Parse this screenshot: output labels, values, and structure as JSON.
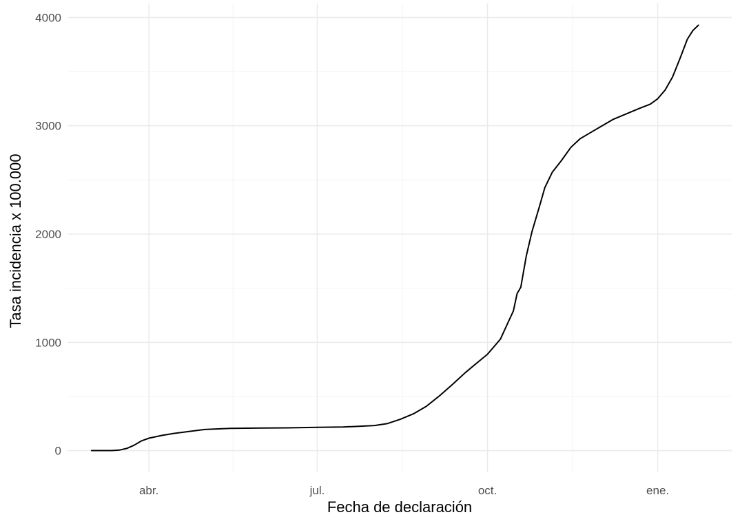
{
  "chart_data": {
    "type": "line",
    "title": "",
    "xlabel": "Fecha de declaración",
    "ylabel": "Tasa incidencia x 100.000",
    "x_tick_labels": [
      "abr.",
      "jul.",
      "oct.",
      "ene."
    ],
    "x_tick_dates": [
      "2020-04-01",
      "2020-07-01",
      "2020-10-01",
      "2021-01-01"
    ],
    "xlim": [
      "2020-02-17",
      "2021-02-10"
    ],
    "y_ticks": [
      0,
      1000,
      2000,
      3000,
      4000
    ],
    "ylim": [
      -200,
      4130
    ],
    "grid": true,
    "legend": "none",
    "line_color": "#000000",
    "series": [
      {
        "x": [
          "2020-03-01",
          "2020-03-08",
          "2020-03-12",
          "2020-03-16",
          "2020-03-20",
          "2020-03-24",
          "2020-03-28",
          "2020-04-01",
          "2020-04-08",
          "2020-04-15",
          "2020-04-22",
          "2020-05-01",
          "2020-05-15",
          "2020-06-01",
          "2020-06-15",
          "2020-07-01",
          "2020-07-15",
          "2020-08-01",
          "2020-08-08",
          "2020-08-15",
          "2020-08-22",
          "2020-08-29",
          "2020-09-05",
          "2020-09-12",
          "2020-09-19",
          "2020-09-26",
          "2020-10-01",
          "2020-10-08",
          "2020-10-12",
          "2020-10-15",
          "2020-10-17",
          "2020-10-19",
          "2020-10-22",
          "2020-10-25",
          "2020-10-29",
          "2020-11-01",
          "2020-11-05",
          "2020-11-10",
          "2020-11-15",
          "2020-11-20",
          "2020-11-25",
          "2020-12-01",
          "2020-12-08",
          "2020-12-15",
          "2020-12-22",
          "2020-12-28",
          "2021-01-01",
          "2021-01-05",
          "2021-01-09",
          "2021-01-13",
          "2021-01-17",
          "2021-01-20",
          "2021-01-23"
        ],
        "y": [
          0,
          0,
          0,
          5,
          20,
          50,
          90,
          115,
          140,
          160,
          175,
          195,
          205,
          208,
          210,
          215,
          218,
          232,
          250,
          290,
          340,
          410,
          505,
          610,
          720,
          820,
          890,
          1030,
          1180,
          1290,
          1450,
          1510,
          1800,
          2020,
          2250,
          2430,
          2570,
          2680,
          2800,
          2880,
          2930,
          2990,
          3060,
          3110,
          3160,
          3200,
          3250,
          3330,
          3450,
          3620,
          3800,
          3880,
          3930
        ]
      }
    ]
  }
}
